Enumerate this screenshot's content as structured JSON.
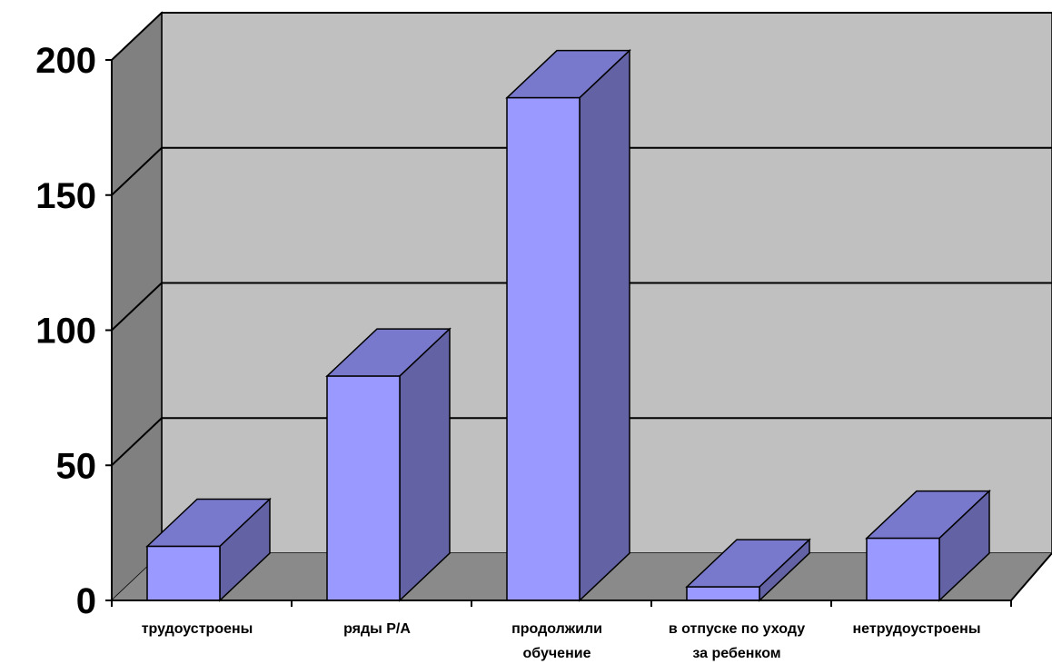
{
  "chart_data": {
    "type": "bar",
    "style": "3d-column",
    "categories": [
      "трудоустроены",
      "ряды Р/А",
      "продолжили обучение",
      "в отпуске по уходу за ребенком",
      "нетрудоустроены"
    ],
    "category_lines": [
      [
        "трудоустроены"
      ],
      [
        "ряды Р/А"
      ],
      [
        "продолжили",
        "обучение"
      ],
      [
        "в отпуске по уходу",
        "за ребенком"
      ],
      [
        "нетрудоустроены"
      ]
    ],
    "values": [
      20,
      83,
      186,
      5,
      23
    ],
    "yticks": [
      "0",
      "50",
      "100",
      "150",
      "200"
    ],
    "ylim": [
      0,
      200
    ],
    "grid": true,
    "legend": "none",
    "colors": {
      "bar_front": "#9999ff",
      "bar_top": "#7878cc",
      "bar_side": "#6262a4",
      "back_wall": "#c0c0c0",
      "side_wall": "#808080",
      "floor": "#8a8a8a"
    }
  }
}
